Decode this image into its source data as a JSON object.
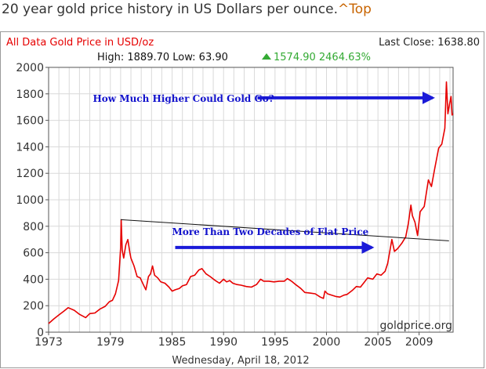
{
  "page": {
    "heading": "20 year gold price history in US Dollars per ounce.",
    "top_link": "^Top"
  },
  "chart_header": {
    "left_title": "All Data Gold Price in USD/oz",
    "last_close_label": "Last Close: 1638.80",
    "high_low": "High: 1889.70 Low: 63.90",
    "change": "1574.90 2464.63%"
  },
  "colors": {
    "price_line": "#e60000",
    "annotation_text": "#1111cc",
    "arrow": "#1a1ad8",
    "up_arrow": "#33aa33",
    "header_red": "#e60000",
    "change_green": "#33aa33"
  },
  "chart_data": {
    "type": "line",
    "title": "All Data Gold Price in USD/oz",
    "xlabel": "Wednesday, April 18, 2012",
    "ylabel": "",
    "xlim": [
      1973,
      2012.3
    ],
    "ylim": [
      0,
      2000
    ],
    "x_ticks": [
      1973,
      1979,
      1985,
      1990,
      1995,
      2000,
      2005,
      2009
    ],
    "x_tick_labels": [
      "1973",
      "1979",
      "1985",
      "1990",
      "1995",
      "2000",
      "2005",
      "2009"
    ],
    "y_ticks": [
      0,
      200,
      400,
      600,
      800,
      1000,
      1200,
      1400,
      1600,
      1800,
      2000
    ],
    "y_tick_labels": [
      "0",
      "200",
      "400",
      "600",
      "800",
      "1000",
      "1200",
      "1400",
      "1600",
      "1800",
      "2000"
    ],
    "grid": true,
    "series": [
      {
        "name": "Gold Price",
        "points": [
          [
            1973.0,
            65
          ],
          [
            1973.5,
            100
          ],
          [
            1974.0,
            130
          ],
          [
            1974.5,
            160
          ],
          [
            1974.9,
            185
          ],
          [
            1975.5,
            165
          ],
          [
            1976.0,
            135
          ],
          [
            1976.6,
            110
          ],
          [
            1977.0,
            140
          ],
          [
            1977.5,
            145
          ],
          [
            1978.0,
            175
          ],
          [
            1978.5,
            195
          ],
          [
            1978.9,
            230
          ],
          [
            1979.2,
            240
          ],
          [
            1979.5,
            290
          ],
          [
            1979.8,
            390
          ],
          [
            1980.0,
            640
          ],
          [
            1980.05,
            850
          ],
          [
            1980.15,
            620
          ],
          [
            1980.3,
            560
          ],
          [
            1980.5,
            660
          ],
          [
            1980.7,
            700
          ],
          [
            1980.9,
            600
          ],
          [
            1981.0,
            560
          ],
          [
            1981.3,
            500
          ],
          [
            1981.6,
            420
          ],
          [
            1981.9,
            410
          ],
          [
            1982.2,
            360
          ],
          [
            1982.45,
            320
          ],
          [
            1982.7,
            420
          ],
          [
            1982.9,
            440
          ],
          [
            1983.1,
            500
          ],
          [
            1983.3,
            430
          ],
          [
            1983.6,
            410
          ],
          [
            1983.9,
            380
          ],
          [
            1984.3,
            370
          ],
          [
            1984.7,
            340
          ],
          [
            1985.0,
            310
          ],
          [
            1985.3,
            320
          ],
          [
            1985.7,
            330
          ],
          [
            1986.0,
            350
          ],
          [
            1986.4,
            360
          ],
          [
            1986.8,
            420
          ],
          [
            1987.2,
            430
          ],
          [
            1987.6,
            470
          ],
          [
            1987.9,
            480
          ],
          [
            1988.3,
            440
          ],
          [
            1988.7,
            420
          ],
          [
            1989.2,
            390
          ],
          [
            1989.6,
            370
          ],
          [
            1990.0,
            400
          ],
          [
            1990.3,
            380
          ],
          [
            1990.6,
            390
          ],
          [
            1990.9,
            370
          ],
          [
            1991.3,
            360
          ],
          [
            1991.7,
            355
          ],
          [
            1992.2,
            345
          ],
          [
            1992.7,
            340
          ],
          [
            1993.2,
            360
          ],
          [
            1993.6,
            400
          ],
          [
            1993.9,
            385
          ],
          [
            1994.4,
            385
          ],
          [
            1994.9,
            380
          ],
          [
            1995.4,
            385
          ],
          [
            1995.9,
            385
          ],
          [
            1996.2,
            405
          ],
          [
            1996.6,
            385
          ],
          [
            1997.0,
            360
          ],
          [
            1997.5,
            330
          ],
          [
            1997.9,
            300
          ],
          [
            1998.4,
            295
          ],
          [
            1998.9,
            290
          ],
          [
            1999.4,
            265
          ],
          [
            1999.7,
            255
          ],
          [
            1999.85,
            310
          ],
          [
            2000.1,
            290
          ],
          [
            2000.5,
            280
          ],
          [
            2000.9,
            270
          ],
          [
            2001.3,
            265
          ],
          [
            2001.7,
            280
          ],
          [
            2002.0,
            285
          ],
          [
            2002.5,
            315
          ],
          [
            2002.9,
            345
          ],
          [
            2003.3,
            340
          ],
          [
            2003.7,
            380
          ],
          [
            2004.0,
            410
          ],
          [
            2004.5,
            400
          ],
          [
            2004.9,
            440
          ],
          [
            2005.3,
            430
          ],
          [
            2005.7,
            460
          ],
          [
            2005.95,
            520
          ],
          [
            2006.35,
            700
          ],
          [
            2006.6,
            610
          ],
          [
            2006.9,
            630
          ],
          [
            2007.3,
            670
          ],
          [
            2007.7,
            720
          ],
          [
            2007.95,
            820
          ],
          [
            2008.2,
            960
          ],
          [
            2008.35,
            880
          ],
          [
            2008.6,
            830
          ],
          [
            2008.85,
            730
          ],
          [
            2009.1,
            910
          ],
          [
            2009.5,
            950
          ],
          [
            2009.9,
            1150
          ],
          [
            2010.2,
            1100
          ],
          [
            2010.5,
            1230
          ],
          [
            2010.9,
            1390
          ],
          [
            2011.2,
            1420
          ],
          [
            2011.5,
            1540
          ],
          [
            2011.65,
            1890
          ],
          [
            2011.8,
            1650
          ],
          [
            2011.95,
            1720
          ],
          [
            2012.1,
            1780
          ],
          [
            2012.2,
            1640
          ],
          [
            2012.3,
            1650
          ]
        ]
      }
    ],
    "annotations": [
      {
        "text": "How Much Higher Could Gold Go?",
        "arrow_from": [
          1993.3,
          1770
        ],
        "arrow_to": [
          2010.3,
          1770
        ]
      },
      {
        "text": "More Than Two Decades of Flat Price",
        "arrow_from": [
          1985.3,
          640
        ],
        "arrow_to": [
          2004.4,
          640
        ]
      }
    ],
    "trend_line": {
      "from": [
        1980.0,
        850
      ],
      "to": [
        2011.9,
        690
      ]
    },
    "watermark": "goldprice.org"
  }
}
